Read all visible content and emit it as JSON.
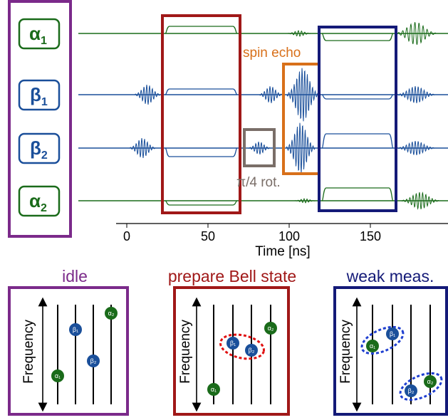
{
  "qubits": [
    {
      "id": "a1",
      "greek": "α",
      "sub": "1",
      "color": "#1a6b1a"
    },
    {
      "id": "b1",
      "greek": "β",
      "sub": "1",
      "color": "#1a4f9a"
    },
    {
      "id": "b2",
      "greek": "β",
      "sub": "2",
      "color": "#1a4f9a"
    },
    {
      "id": "a2",
      "greek": "α",
      "sub": "2",
      "color": "#1a6b1a"
    }
  ],
  "time_axis": {
    "label": "Time [ns]",
    "ticks": [
      "0",
      "50",
      "100",
      "150"
    ]
  },
  "annotations": {
    "spin_echo": "spin echo",
    "rotation": "π/4 rot."
  },
  "panels": {
    "idle": "idle",
    "bell": "prepare Bell state",
    "weak": "weak meas.",
    "freq_label": "Frequency"
  },
  "colors": {
    "purple": "#7b2a8a",
    "red": "#a01818",
    "navy": "#141a78",
    "orange": "#d8701a",
    "gray": "#7a6e68",
    "green": "#1a6b1a",
    "blue": "#1a4f9a"
  }
}
